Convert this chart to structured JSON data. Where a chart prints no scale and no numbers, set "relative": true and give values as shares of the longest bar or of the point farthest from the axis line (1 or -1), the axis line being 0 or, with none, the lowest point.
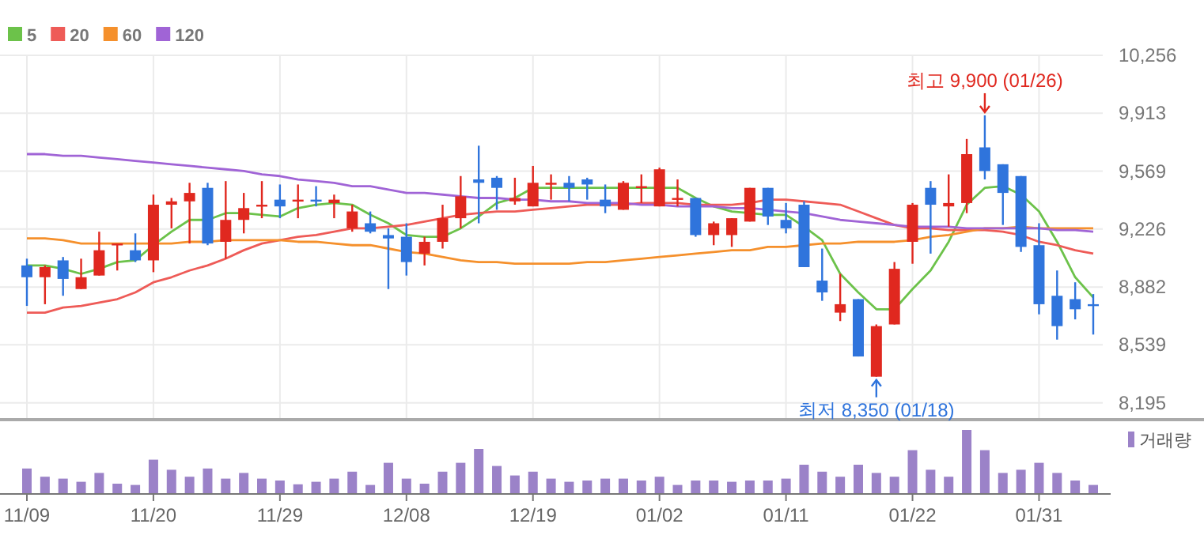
{
  "chart_data": [
    {
      "type": "candlestick",
      "categories": [
        null,
        null,
        null,
        null,
        null,
        null,
        null,
        null,
        null,
        null,
        null,
        null,
        null,
        null,
        null,
        null,
        null,
        null,
        null,
        null,
        null,
        null,
        null,
        null,
        null,
        null,
        null,
        null,
        null,
        null,
        null,
        null,
        null,
        null,
        null,
        null,
        null,
        null,
        null,
        null,
        null,
        null,
        null,
        null,
        null,
        null,
        null,
        null,
        null,
        null,
        null,
        null,
        null,
        null,
        null,
        null,
        null,
        null,
        null,
        null
      ],
      "ohlc": [
        [
          9010,
          9050,
          8770,
          8940
        ],
        [
          8940,
          9010,
          8780,
          9000
        ],
        [
          9040,
          9060,
          8830,
          8930
        ],
        [
          8870,
          9050,
          8870,
          8940
        ],
        [
          8950,
          9210,
          8950,
          9100
        ],
        [
          9130,
          9140,
          8980,
          9140
        ],
        [
          9100,
          9200,
          9030,
          9040
        ],
        [
          9040,
          9430,
          8970,
          9370
        ],
        [
          9370,
          9410,
          9230,
          9390
        ],
        [
          9390,
          9500,
          9140,
          9440
        ],
        [
          9470,
          9500,
          9130,
          9140
        ],
        [
          9150,
          9510,
          9050,
          9280
        ],
        [
          9280,
          9440,
          9200,
          9350
        ],
        [
          9360,
          9510,
          9290,
          9370
        ],
        [
          9400,
          9490,
          9290,
          9360
        ],
        [
          9390,
          9490,
          9290,
          9400
        ],
        [
          9400,
          9480,
          9360,
          9390
        ],
        [
          9380,
          9430,
          9290,
          9400
        ],
        [
          9230,
          9370,
          9210,
          9330
        ],
        [
          9260,
          9330,
          9200,
          9210
        ],
        [
          9190,
          9230,
          8870,
          9170
        ],
        [
          9180,
          9260,
          8950,
          9030
        ],
        [
          9080,
          9180,
          9010,
          9150
        ],
        [
          9150,
          9370,
          9110,
          9290
        ],
        [
          9290,
          9540,
          9230,
          9420
        ],
        [
          9520,
          9720,
          9260,
          9500
        ],
        [
          9530,
          9540,
          9340,
          9470
        ],
        [
          9390,
          9530,
          9370,
          9410
        ],
        [
          9360,
          9600,
          9360,
          9500
        ],
        [
          9490,
          9550,
          9400,
          9500
        ],
        [
          9500,
          9540,
          9390,
          9470
        ],
        [
          9520,
          9530,
          9400,
          9490
        ],
        [
          9400,
          9490,
          9320,
          9360
        ],
        [
          9340,
          9510,
          9340,
          9500
        ],
        [
          9470,
          9550,
          9380,
          9480
        ],
        [
          9360,
          9590,
          9360,
          9580
        ],
        [
          9400,
          9520,
          9360,
          9410
        ],
        [
          9410,
          9410,
          9180,
          9190
        ],
        [
          9190,
          9270,
          9130,
          9260
        ],
        [
          9190,
          9290,
          9120,
          9290
        ],
        [
          9270,
          9470,
          9270,
          9470
        ],
        [
          9470,
          9470,
          9250,
          9300
        ],
        [
          9280,
          9380,
          9200,
          9230
        ],
        [
          9370,
          9390,
          9000,
          9000
        ],
        [
          8920,
          9110,
          8800,
          8850
        ],
        [
          8730,
          8960,
          8680,
          8780
        ],
        [
          8810,
          8810,
          8470,
          8470
        ],
        [
          8350,
          8660,
          8350,
          8650
        ],
        [
          8660,
          9030,
          8660,
          8990
        ],
        [
          9150,
          9380,
          9020,
          9370
        ],
        [
          9470,
          9510,
          9080,
          9370
        ],
        [
          9360,
          9550,
          9240,
          9380
        ],
        [
          9380,
          9760,
          9320,
          9670
        ],
        [
          9710,
          9900,
          9520,
          9570
        ],
        [
          9610,
          9610,
          9250,
          9440
        ],
        [
          9540,
          9540,
          9090,
          9120
        ],
        [
          9130,
          9260,
          8720,
          8780
        ],
        [
          8830,
          8980,
          8570,
          8650
        ],
        [
          8810,
          8910,
          8690,
          8750
        ],
        [
          8780,
          8840,
          8600,
          8770
        ]
      ],
      "colors": [
        "#2f74dc",
        "#e0281f",
        "#2f74dc",
        "#e0281f",
        "#e0281f",
        "#e0281f",
        "#2f74dc",
        "#e0281f",
        "#e0281f",
        "#e0281f",
        "#2f74dc",
        "#e0281f",
        "#e0281f",
        "#e0281f",
        "#2f74dc",
        "#e0281f",
        "#2f74dc",
        "#e0281f",
        "#e0281f",
        "#2f74dc",
        "#2f74dc",
        "#2f74dc",
        "#e0281f",
        "#e0281f",
        "#e0281f",
        "#2f74dc",
        "#2f74dc",
        "#e0281f",
        "#e0281f",
        "#e0281f",
        "#2f74dc",
        "#2f74dc",
        "#2f74dc",
        "#e0281f",
        "#e0281f",
        "#e0281f",
        "#e0281f",
        "#2f74dc",
        "#e0281f",
        "#e0281f",
        "#e0281f",
        "#2f74dc",
        "#2f74dc",
        "#2f74dc",
        "#2f74dc",
        "#e0281f",
        "#2f74dc",
        "#e0281f",
        "#e0281f",
        "#e0281f",
        "#2f74dc",
        "#e0281f",
        "#e0281f",
        "#2f74dc",
        "#2f74dc",
        "#2f74dc",
        "#2f74dc",
        "#2f74dc",
        "#2f74dc",
        "#2f74dc"
      ],
      "series": [
        {
          "name": "5",
          "type": "line",
          "color": "#6cc24a",
          "values": [
            9010,
            9010,
            8990,
            8960,
            8990,
            9030,
            9040,
            9130,
            9210,
            9280,
            9280,
            9320,
            9320,
            9310,
            9300,
            9350,
            9370,
            9380,
            9370,
            9310,
            9260,
            9190,
            9180,
            9180,
            9230,
            9300,
            9380,
            9410,
            9470,
            9470,
            9470,
            9470,
            9470,
            9470,
            9470,
            9470,
            9470,
            9410,
            9360,
            9330,
            9320,
            9310,
            9310,
            9240,
            9160,
            8960,
            8850,
            8750,
            8750,
            8870,
            8980,
            9150,
            9370,
            9470,
            9480,
            9430,
            9330,
            9150,
            8940,
            8820
          ]
        },
        {
          "name": "20",
          "type": "line",
          "color": "#ee5b57",
          "values": [
            8730,
            8730,
            8760,
            8770,
            8790,
            8810,
            8850,
            8910,
            8940,
            8980,
            9010,
            9050,
            9100,
            9140,
            9160,
            9180,
            9190,
            9210,
            9230,
            9230,
            9240,
            9250,
            9270,
            9290,
            9310,
            9320,
            9330,
            9330,
            9340,
            9350,
            9360,
            9370,
            9370,
            9370,
            9380,
            9380,
            9380,
            9370,
            9370,
            9370,
            9380,
            9400,
            9400,
            9390,
            9380,
            9370,
            9330,
            9290,
            9250,
            9230,
            9230,
            9220,
            9220,
            9220,
            9210,
            9190,
            9150,
            9130,
            9100,
            9080
          ]
        },
        {
          "name": "60",
          "type": "line",
          "color": "#f5902c",
          "values": [
            9170,
            9170,
            9160,
            9140,
            9140,
            9140,
            9140,
            9140,
            9140,
            9150,
            9150,
            9160,
            9160,
            9160,
            9160,
            9150,
            9150,
            9140,
            9130,
            9130,
            9110,
            9090,
            9080,
            9060,
            9040,
            9030,
            9030,
            9020,
            9020,
            9020,
            9020,
            9030,
            9030,
            9040,
            9050,
            9060,
            9070,
            9080,
            9090,
            9100,
            9100,
            9120,
            9120,
            9130,
            9140,
            9140,
            9150,
            9150,
            9150,
            9160,
            9180,
            9190,
            9210,
            9230,
            9230,
            9240,
            9230,
            9230,
            9230,
            9230
          ]
        },
        {
          "name": "120",
          "type": "line",
          "color": "#a064d6",
          "values": [
            9670,
            9670,
            9660,
            9660,
            9650,
            9640,
            9630,
            9620,
            9610,
            9600,
            9590,
            9580,
            9570,
            9550,
            9540,
            9520,
            9510,
            9500,
            9480,
            9480,
            9460,
            9440,
            9440,
            9430,
            9420,
            9410,
            9410,
            9400,
            9400,
            9390,
            9390,
            9380,
            9380,
            9380,
            9370,
            9370,
            9360,
            9360,
            9360,
            9350,
            9350,
            9340,
            9330,
            9320,
            9300,
            9280,
            9270,
            9260,
            9250,
            9240,
            9240,
            9240,
            9230,
            9230,
            9230,
            9230,
            9230,
            9220,
            9220,
            9210
          ]
        }
      ],
      "ylim": [
        8100,
        10256
      ],
      "yticks": [
        {
          "value": 8195,
          "label": "8,195"
        },
        {
          "value": 8539,
          "label": "8,539"
        },
        {
          "value": 8882,
          "label": "8,882"
        },
        {
          "value": 9226,
          "label": "9,226"
        },
        {
          "value": 9569,
          "label": "9,569"
        },
        {
          "value": 9913,
          "label": "9,913"
        },
        {
          "value": 10256,
          "label": "10,256"
        }
      ],
      "grid": true,
      "legend": "top left",
      "tick_labels": "y",
      "annotations": [
        "최고 9,900 (01/26)",
        "최저 8,350 (01/18)"
      ]
    },
    {
      "type": "bar",
      "categories": [
        "11/09",
        null,
        null,
        null,
        null,
        null,
        null,
        "11/20",
        null,
        null,
        null,
        null,
        null,
        null,
        "11/29",
        null,
        null,
        null,
        null,
        null,
        null,
        "12/08",
        null,
        null,
        null,
        null,
        null,
        null,
        "12/19",
        null,
        null,
        null,
        null,
        null,
        null,
        "01/02",
        null,
        null,
        null,
        null,
        null,
        null,
        "01/11",
        null,
        null,
        null,
        null,
        null,
        null,
        "01/22",
        null,
        null,
        null,
        null,
        null,
        null,
        "01/31",
        null,
        null,
        null
      ],
      "series": [
        {
          "name": "거래량",
          "color": "#9b82c8",
          "values": [
            0.39,
            0.26,
            0.23,
            0.18,
            0.32,
            0.15,
            0.13,
            0.53,
            0.37,
            0.26,
            0.39,
            0.23,
            0.32,
            0.23,
            0.2,
            0.14,
            0.18,
            0.23,
            0.34,
            0.13,
            0.48,
            0.23,
            0.15,
            0.34,
            0.48,
            0.7,
            0.43,
            0.28,
            0.34,
            0.23,
            0.18,
            0.2,
            0.23,
            0.23,
            0.2,
            0.26,
            0.13,
            0.2,
            0.2,
            0.18,
            0.2,
            0.2,
            0.23,
            0.45,
            0.34,
            0.26,
            0.45,
            0.32,
            0.26,
            0.68,
            0.37,
            0.26,
            1,
            0.68,
            0.32,
            0.37,
            0.48,
            0.32,
            0.2,
            0.13
          ]
        }
      ],
      "relative": true,
      "legend": "top right",
      "tick_labels": "x"
    }
  ]
}
